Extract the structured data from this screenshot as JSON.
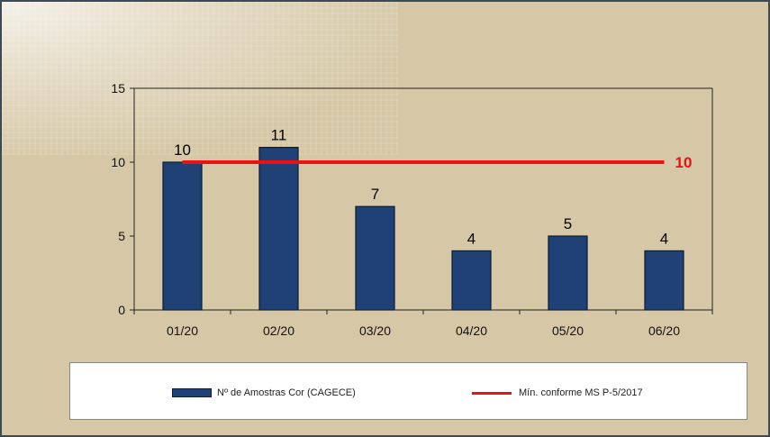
{
  "chart_data": {
    "type": "bar",
    "categories": [
      "01/20",
      "02/20",
      "03/20",
      "04/20",
      "05/20",
      "06/20"
    ],
    "series": [
      {
        "name": "Nº de Amostras Cor (CAGECE)",
        "type": "bar",
        "values": [
          10,
          11,
          7,
          4,
          5,
          4
        ],
        "color": "#1f4176"
      },
      {
        "name": "Mín. conforme MS  P-5/2017",
        "type": "line",
        "values": [
          10,
          10,
          10,
          10,
          10,
          10
        ],
        "color": "#ee1111",
        "end_label": "10"
      }
    ],
    "ylim": [
      0,
      15
    ],
    "yticks": [
      0,
      5,
      10,
      15
    ],
    "grid": false,
    "legend": "bottom"
  }
}
